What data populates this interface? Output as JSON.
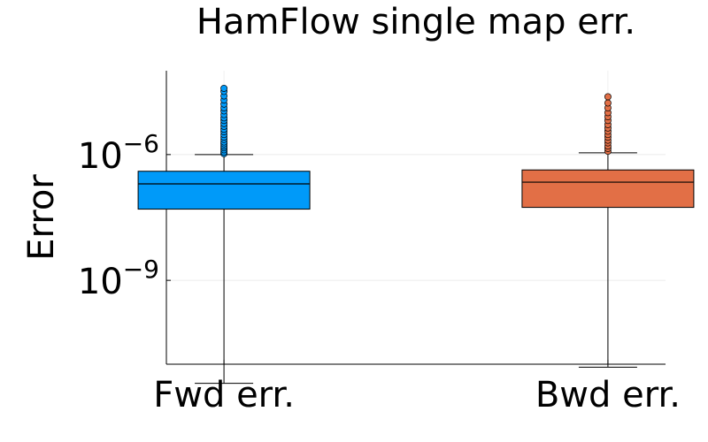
{
  "chart_data": {
    "type": "box",
    "title": "HamFlow single map err.",
    "xlabel": "",
    "ylabel": "Error",
    "y_scale": "log10",
    "ylim": [
      1e-11,
      0.0001
    ],
    "yticks": [
      {
        "base": "10",
        "exp": "−6",
        "value": 1e-06
      },
      {
        "base": "10",
        "exp": "−9",
        "value": 1e-09
      }
    ],
    "grid": true,
    "legend": "none",
    "series": [
      {
        "category": "Fwd err.",
        "color": "#009af9",
        "whisker_low": 3.5e-12,
        "q1": 5e-08,
        "median": 2e-07,
        "q3": 4e-07,
        "whisker_high": 1e-06,
        "outliers": [
          1.05e-06,
          1.15e-06,
          1.3e-06,
          1.45e-06,
          1.6e-06,
          1.8e-06,
          2e-06,
          2.3e-06,
          2.6e-06,
          3e-06,
          3.5e-06,
          4e-06,
          4.7e-06,
          5.5e-06,
          6.5e-06,
          7.5e-06,
          9e-06,
          1.1e-05,
          1.3e-05,
          1.6e-05,
          2e-05,
          2.5e-05,
          3.2e-05,
          3.8e-05
        ]
      },
      {
        "category": "Bwd err.",
        "color": "#e26f46",
        "whisker_low": 8.5e-12,
        "q1": 5.5e-08,
        "median": 2.2e-07,
        "q3": 4.3e-07,
        "whisker_high": 1.1e-06,
        "outliers": [
          1.2e-06,
          1.4e-06,
          1.6e-06,
          1.9e-06,
          2.2e-06,
          2.6e-06,
          3e-06,
          3.6e-06,
          4.3e-06,
          5.2e-06,
          6.5e-06,
          8e-06,
          1e-05,
          1.3e-05,
          1.7e-05,
          2.4e-05
        ]
      }
    ]
  }
}
